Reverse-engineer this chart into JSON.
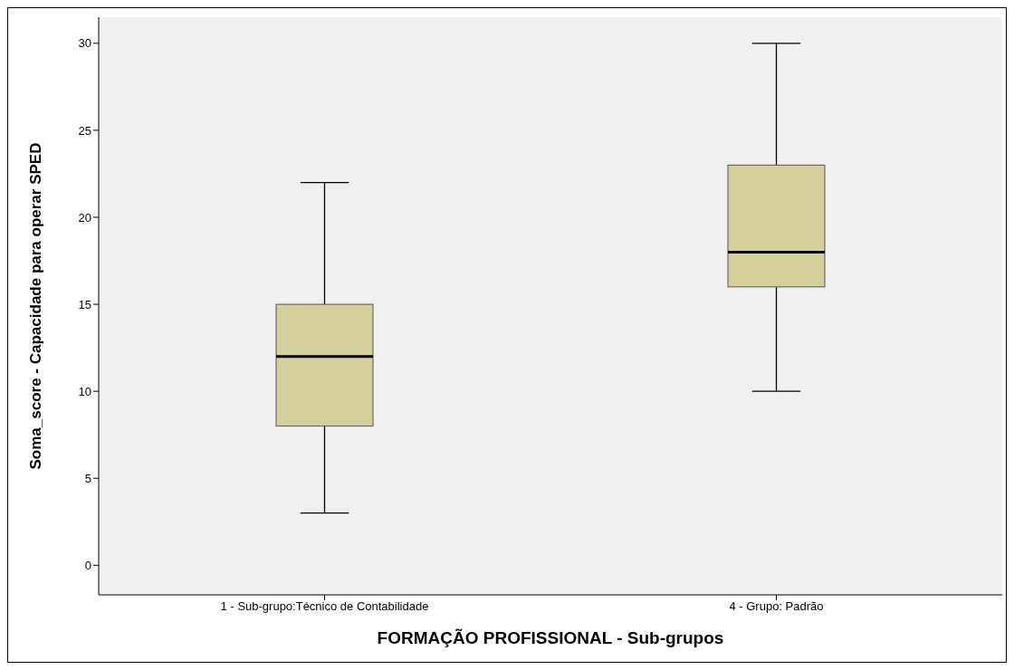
{
  "chart_data": {
    "type": "box",
    "xlabel": "FORMAÇÃO PROFISSIONAL - Sub-grupos",
    "ylabel": "Soma_score - Capacidade para operar SPED",
    "categories": [
      "1 - Sub-grupo:Técnico de Contabilidade",
      "4 - Grupo: Padrão"
    ],
    "boxes": [
      {
        "low": 3,
        "q1": 8,
        "median": 12,
        "q3": 15,
        "high": 22
      },
      {
        "low": 10,
        "q1": 16,
        "median": 18,
        "q3": 23,
        "high": 30
      }
    ],
    "color": "#d4cf9b",
    "ylim": [
      -1.7,
      31.5
    ],
    "yticks": [
      0,
      5,
      10,
      15,
      20,
      25,
      30
    ],
    "grid": false
  }
}
